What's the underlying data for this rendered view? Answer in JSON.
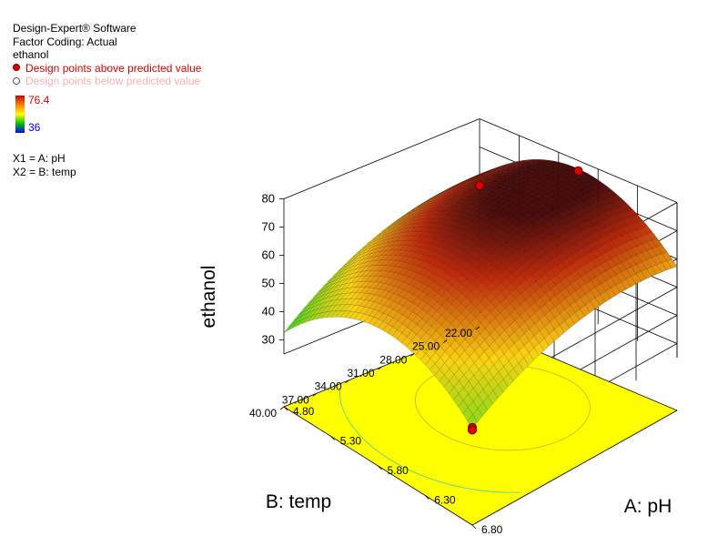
{
  "info": {
    "software": "Design-Expert® Software",
    "coding": "Factor Coding: Actual",
    "response": "ethanol",
    "above_label": "Design points above predicted value",
    "below_label": "Design points below predicted value",
    "colorbar_max": "76.4",
    "colorbar_min": "36",
    "x1": "X1 = A: pH",
    "x2": "X2 = B: temp"
  },
  "chart_data": {
    "type": "surface",
    "zlabel": "ethanol",
    "xlabel": "A: pH",
    "ylabel": "B: temp",
    "x_ticks": [
      "4.80",
      "5.30",
      "5.80",
      "6.30",
      "6.80"
    ],
    "y_ticks": [
      "22.00",
      "25.00",
      "28.00",
      "31.00",
      "34.00",
      "37.00",
      "40.00"
    ],
    "z_ticks": [
      "30",
      "40",
      "50",
      "60",
      "70",
      "80"
    ],
    "xlim": [
      4.8,
      6.8
    ],
    "ylim": [
      22,
      40
    ],
    "zlim": [
      25,
      80
    ],
    "surface_peak": 76.4,
    "surface_min": 36,
    "design_points": [
      {
        "pH": 5.8,
        "temp": 40.0,
        "ethanol": 76.4,
        "position": "above"
      },
      {
        "pH": 4.8,
        "temp": 40.0,
        "ethanol": 56.3,
        "position": "above"
      },
      {
        "pH": 6.8,
        "temp": 22.0,
        "ethanol": 40.9,
        "position": "above"
      },
      {
        "pH": 6.8,
        "temp": 22.0,
        "ethanol": 40.0,
        "position": "above"
      }
    ],
    "floor_color": "#ffff00",
    "high_color": "#b00000",
    "low_color": "#40d020"
  }
}
